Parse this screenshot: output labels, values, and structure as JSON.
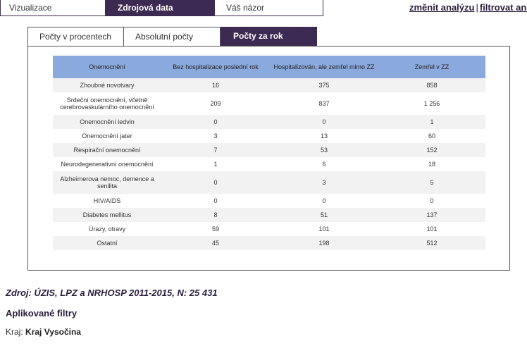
{
  "topnav": {
    "tabs": [
      {
        "label": "Vizualizace",
        "active": false
      },
      {
        "label": "Zdrojová data",
        "active": true
      },
      {
        "label": "Váš názor",
        "active": false
      }
    ],
    "change_analysis": "změnit analýzu",
    "separator": "|",
    "filter_analysis": "filtrovat analýzu"
  },
  "subtabs": [
    {
      "label": "Počty v procentech",
      "active": false
    },
    {
      "label": "Absolutní počty",
      "active": false
    },
    {
      "label": "Počty za rok",
      "active": true
    }
  ],
  "table": {
    "headers": [
      "Onemocnění",
      "Bez hospitalizace poslední rok",
      "Hospitalizován, ale zemřel mimo ZZ",
      "Zemřel v ZZ"
    ],
    "rows": [
      [
        "Zhoubné novotvary",
        "16",
        "375",
        "858"
      ],
      [
        "Srdeční onemocnění, včetně cerebrovaskulárního onemocnění",
        "209",
        "837",
        "1 256"
      ],
      [
        "Onemocnění ledvin",
        "0",
        "0",
        "1"
      ],
      [
        "Onemocnění jater",
        "3",
        "13",
        "60"
      ],
      [
        "Respirační onemocnění",
        "7",
        "53",
        "152"
      ],
      [
        "Neurodegenerativní onemocnění",
        "1",
        "6",
        "18"
      ],
      [
        "Alzheimerova nemoc, demence a senilita",
        "0",
        "3",
        "5"
      ],
      [
        "HIV/AIDS",
        "0",
        "0",
        "0"
      ],
      [
        "Diabetes mellitus",
        "8",
        "51",
        "137"
      ],
      [
        "Úrazy, otravy",
        "59",
        "101",
        "101"
      ],
      [
        "Ostatní",
        "45",
        "198",
        "512"
      ]
    ]
  },
  "footer": {
    "source": "Zdroj: ÚZIS, LPZ a NRHOSP 2011-2015, N: 25 431",
    "filters_title": "Aplikované filtry",
    "filter_label": "Kraj:",
    "filter_value": "Kraj Vysočina"
  }
}
